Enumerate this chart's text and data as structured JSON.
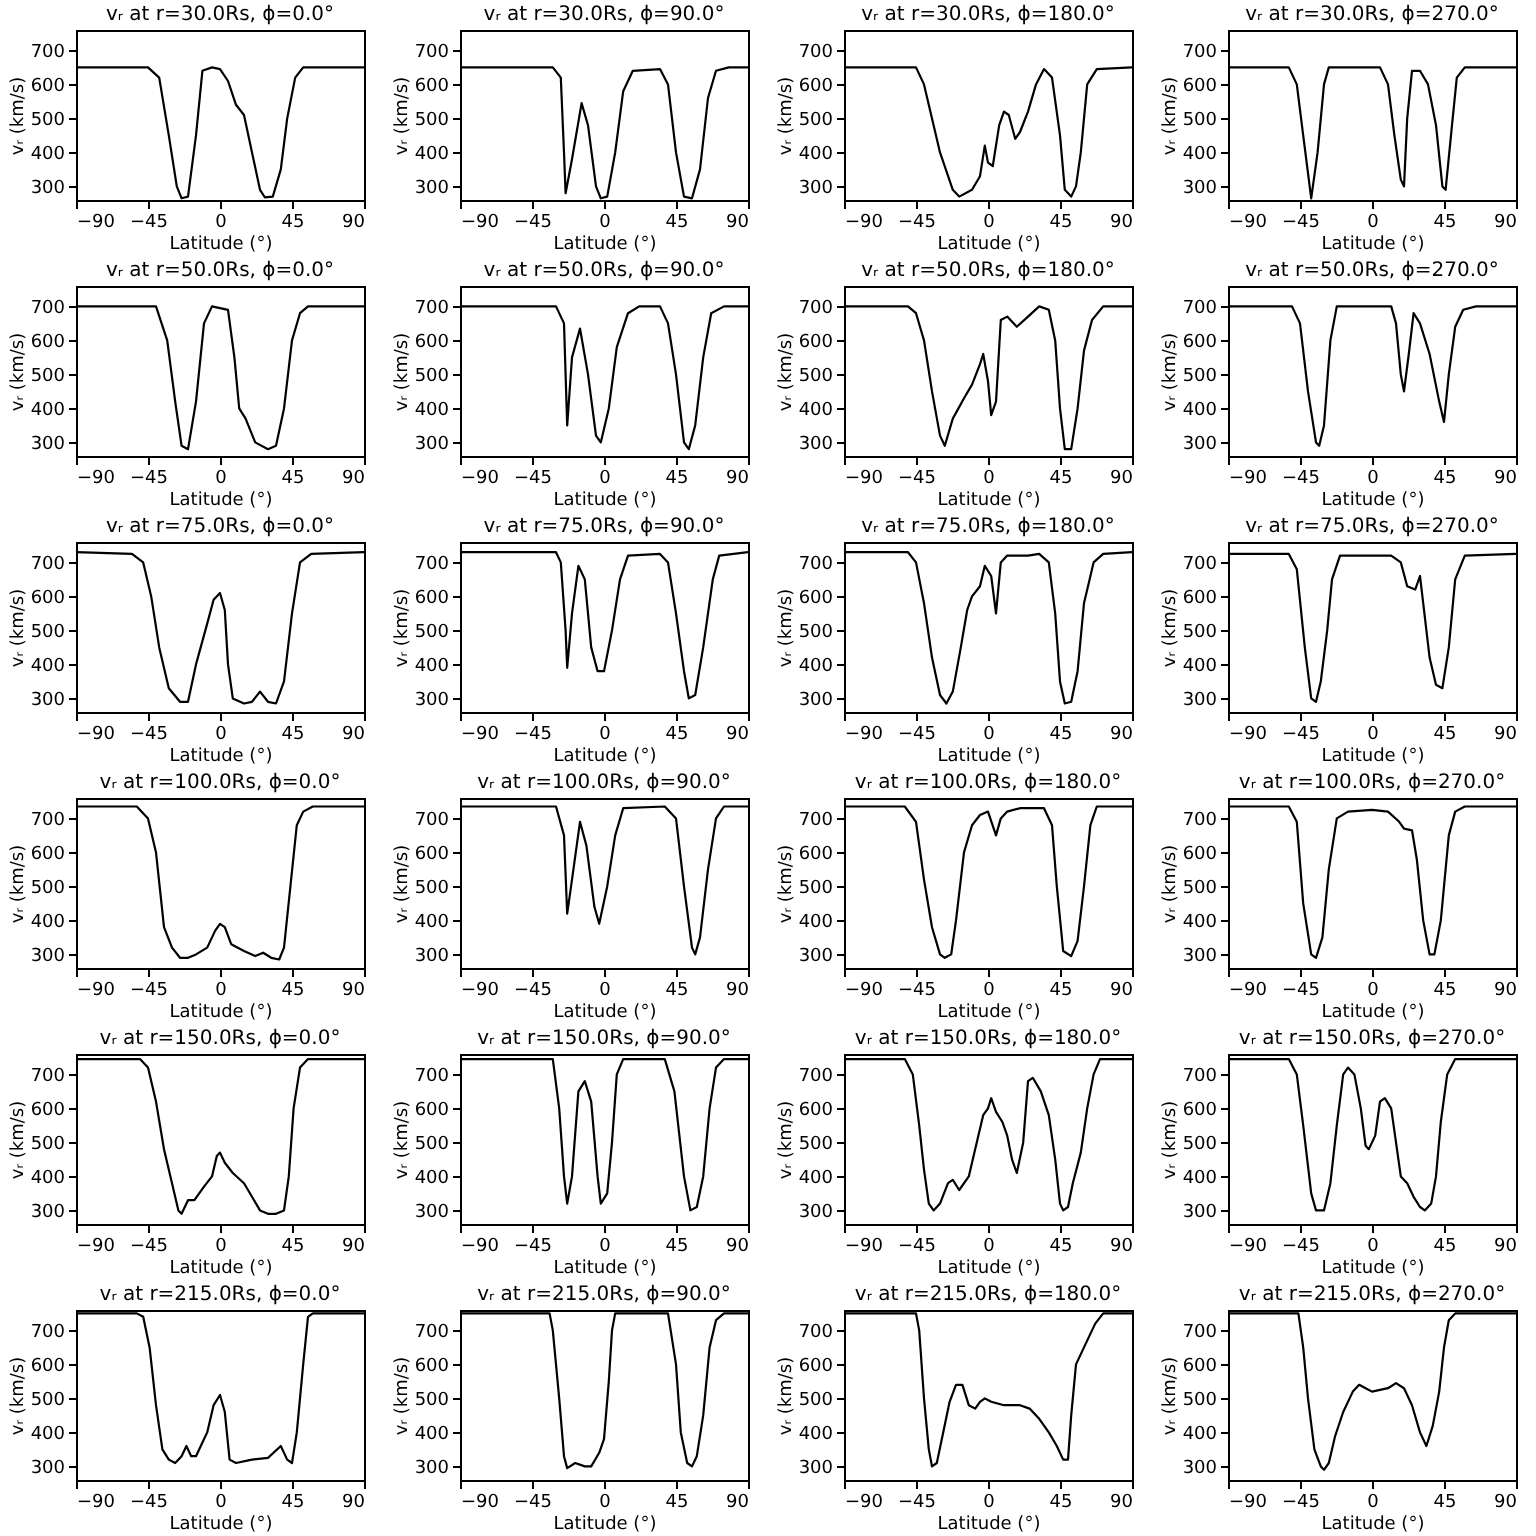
{
  "chart_data": [
    {
      "type": "line",
      "title": "vᵣ at r=30.0Rs, ϕ=0.0°",
      "xlabel": "Latitude (°)",
      "ylabel": "vᵣ (km/s)",
      "xlim": [
        -90,
        90
      ],
      "xticks": [
        -90,
        -45,
        0,
        45,
        90
      ],
      "ylim": [
        260,
        760
      ],
      "yticks": [
        300,
        400,
        500,
        600,
        700
      ],
      "x": [
        -90,
        -45,
        -38,
        -32,
        -27,
        -24,
        -20,
        -15,
        -11,
        -5,
        0,
        5,
        10,
        15,
        20,
        25,
        28,
        33,
        38,
        42,
        47,
        52,
        90
      ],
      "series": [
        {
          "color": "#000000",
          "values": [
            650,
            650,
            620,
            450,
            300,
            265,
            270,
            450,
            640,
            650,
            645,
            610,
            540,
            510,
            400,
            290,
            268,
            270,
            350,
            500,
            620,
            650,
            650
          ]
        }
      ]
    },
    {
      "type": "line",
      "title": "vᵣ at r=30.0Rs, ϕ=90.0°",
      "xlabel": "Latitude (°)",
      "ylabel": "vᵣ (km/s)",
      "xlim": [
        -90,
        90
      ],
      "xticks": [
        -90,
        -45,
        0,
        45,
        90
      ],
      "ylim": [
        260,
        760
      ],
      "yticks": [
        300,
        400,
        500,
        600,
        700
      ],
      "x": [
        -90,
        -32,
        -27,
        -25,
        -24,
        -20,
        -14,
        -10,
        -5,
        -2,
        2,
        7,
        12,
        18,
        35,
        40,
        45,
        50,
        55,
        60,
        65,
        70,
        78,
        90
      ],
      "series": [
        {
          "color": "#000000",
          "values": [
            650,
            650,
            620,
            400,
            280,
            380,
            545,
            480,
            300,
            265,
            270,
            400,
            580,
            640,
            645,
            600,
            400,
            270,
            265,
            350,
            560,
            640,
            650,
            650
          ]
        }
      ]
    },
    {
      "type": "line",
      "title": "vᵣ at r=30.0Rs, ϕ=180.0°",
      "xlabel": "Latitude (°)",
      "ylabel": "vᵣ (km/s)",
      "xlim": [
        -90,
        90
      ],
      "xticks": [
        -90,
        -45,
        0,
        45,
        90
      ],
      "ylim": [
        260,
        760
      ],
      "yticks": [
        300,
        400,
        500,
        600,
        700
      ],
      "x": [
        -90,
        -45,
        -40,
        -30,
        -22,
        -18,
        -10,
        -5,
        -2,
        0,
        3,
        7,
        10,
        13,
        17,
        20,
        25,
        30,
        35,
        40,
        45,
        48,
        52,
        55,
        58,
        62,
        68,
        90
      ],
      "series": [
        {
          "color": "#000000",
          "values": [
            650,
            650,
            600,
            400,
            290,
            270,
            290,
            330,
            420,
            370,
            360,
            480,
            520,
            510,
            440,
            460,
            520,
            600,
            645,
            620,
            450,
            290,
            270,
            300,
            400,
            600,
            645,
            650
          ]
        }
      ]
    },
    {
      "type": "line",
      "title": "vᵣ at r=30.0Rs, ϕ=270.0°",
      "xlabel": "Latitude (°)",
      "ylabel": "vᵣ (km/s)",
      "xlim": [
        -90,
        90
      ],
      "xticks": [
        -90,
        -45,
        0,
        45,
        90
      ],
      "ylim": [
        260,
        760
      ],
      "yticks": [
        300,
        400,
        500,
        600,
        700
      ],
      "x": [
        -90,
        -52,
        -47,
        -43,
        -38,
        -34,
        -30,
        -27,
        5,
        10,
        14,
        18,
        20,
        22,
        25,
        30,
        35,
        40,
        44,
        46,
        50,
        53,
        58,
        90
      ],
      "series": [
        {
          "color": "#000000",
          "values": [
            650,
            650,
            600,
            450,
            265,
            400,
            600,
            650,
            650,
            600,
            450,
            320,
            300,
            500,
            640,
            640,
            600,
            480,
            300,
            290,
            480,
            620,
            650,
            650
          ]
        }
      ]
    },
    {
      "type": "line",
      "title": "vᵣ at r=50.0Rs, ϕ=0.0°",
      "xlabel": "Latitude (°)",
      "ylabel": "vᵣ (km/s)",
      "xlim": [
        -90,
        90
      ],
      "xticks": [
        -90,
        -45,
        0,
        45,
        90
      ],
      "ylim": [
        260,
        760
      ],
      "yticks": [
        300,
        400,
        500,
        600,
        700
      ],
      "x": [
        -90,
        -40,
        -33,
        -28,
        -24,
        -20,
        -15,
        -10,
        -5,
        5,
        9,
        12,
        16,
        22,
        30,
        35,
        40,
        45,
        50,
        55,
        90
      ],
      "series": [
        {
          "color": "#000000",
          "values": [
            700,
            700,
            600,
            420,
            290,
            280,
            420,
            650,
            700,
            690,
            550,
            400,
            370,
            300,
            280,
            290,
            400,
            600,
            680,
            700,
            700
          ]
        }
      ]
    },
    {
      "type": "line",
      "title": "vᵣ at r=50.0Rs, ϕ=90.0°",
      "xlabel": "Latitude (°)",
      "ylabel": "vᵣ (km/s)",
      "xlim": [
        -90,
        90
      ],
      "xticks": [
        -90,
        -45,
        0,
        45,
        90
      ],
      "ylim": [
        260,
        760
      ],
      "yticks": [
        300,
        400,
        500,
        600,
        700
      ],
      "x": [
        -90,
        -30,
        -25,
        -23,
        -20,
        -15,
        -10,
        -5,
        -2,
        3,
        8,
        15,
        22,
        35,
        40,
        45,
        50,
        53,
        57,
        62,
        67,
        75,
        90
      ],
      "series": [
        {
          "color": "#000000",
          "values": [
            700,
            700,
            650,
            350,
            550,
            635,
            500,
            320,
            300,
            400,
            580,
            680,
            700,
            700,
            650,
            500,
            300,
            280,
            350,
            550,
            680,
            700,
            700
          ]
        }
      ]
    },
    {
      "type": "line",
      "title": "vᵣ at r=50.0Rs, ϕ=180.0°",
      "xlabel": "Latitude (°)",
      "ylabel": "vᵣ (km/s)",
      "xlim": [
        -90,
        90
      ],
      "xticks": [
        -90,
        -45,
        0,
        45,
        90
      ],
      "ylim": [
        260,
        760
      ],
      "yticks": [
        300,
        400,
        500,
        600,
        700
      ],
      "x": [
        -90,
        -50,
        -45,
        -40,
        -35,
        -30,
        -27,
        -22,
        -15,
        -10,
        -5,
        -3,
        0,
        2,
        5,
        8,
        12,
        18,
        25,
        32,
        38,
        42,
        45,
        48,
        52,
        56,
        60,
        65,
        72,
        90
      ],
      "series": [
        {
          "color": "#000000",
          "values": [
            700,
            700,
            680,
            600,
            450,
            320,
            290,
            370,
            430,
            470,
            530,
            560,
            480,
            380,
            420,
            660,
            670,
            640,
            670,
            700,
            690,
            600,
            400,
            280,
            280,
            400,
            570,
            660,
            700,
            700
          ]
        }
      ]
    },
    {
      "type": "line",
      "title": "vᵣ at r=50.0Rs, ϕ=270.0°",
      "xlabel": "Latitude (°)",
      "ylabel": "vᵣ (km/s)",
      "xlim": [
        -90,
        90
      ],
      "xticks": [
        -90,
        -45,
        0,
        45,
        90
      ],
      "ylim": [
        260,
        760
      ],
      "yticks": [
        300,
        400,
        500,
        600,
        700
      ],
      "x": [
        -90,
        -50,
        -45,
        -40,
        -35,
        -33,
        -30,
        -26,
        -22,
        12,
        15,
        18,
        20,
        23,
        26,
        30,
        36,
        42,
        45,
        48,
        52,
        57,
        65,
        90
      ],
      "series": [
        {
          "color": "#000000",
          "values": [
            700,
            700,
            650,
            450,
            300,
            290,
            350,
            600,
            700,
            700,
            650,
            500,
            450,
            560,
            680,
            650,
            560,
            420,
            360,
            500,
            640,
            690,
            700,
            700
          ]
        }
      ]
    },
    {
      "type": "line",
      "title": "vᵣ at r=75.0Rs, ϕ=0.0°",
      "xlabel": "Latitude (°)",
      "ylabel": "vᵣ (km/s)",
      "xlim": [
        -90,
        90
      ],
      "xticks": [
        -90,
        -45,
        0,
        45,
        90
      ],
      "ylim": [
        260,
        760
      ],
      "yticks": [
        300,
        400,
        500,
        600,
        700
      ],
      "x": [
        -90,
        -55,
        -48,
        -43,
        -38,
        -32,
        -25,
        -20,
        -15,
        -8,
        -4,
        0,
        3,
        5,
        8,
        15,
        20,
        25,
        30,
        35,
        40,
        45,
        50,
        57,
        90
      ],
      "series": [
        {
          "color": "#000000",
          "values": [
            730,
            725,
            700,
            600,
            450,
            330,
            290,
            290,
            400,
            520,
            590,
            610,
            560,
            400,
            300,
            285,
            290,
            320,
            290,
            285,
            350,
            550,
            700,
            725,
            730
          ]
        }
      ]
    },
    {
      "type": "line",
      "title": "vᵣ at r=75.0Rs, ϕ=90.0°",
      "xlabel": "Latitude (°)",
      "ylabel": "vᵣ (km/s)",
      "xlim": [
        -90,
        90
      ],
      "xticks": [
        -90,
        -45,
        0,
        45,
        90
      ],
      "ylim": [
        260,
        760
      ],
      "yticks": [
        300,
        400,
        500,
        600,
        700
      ],
      "x": [
        -90,
        -30,
        -27,
        -24,
        -23,
        -20,
        -16,
        -12,
        -8,
        -4,
        0,
        5,
        10,
        15,
        35,
        40,
        45,
        50,
        53,
        57,
        62,
        68,
        72,
        90
      ],
      "series": [
        {
          "color": "#000000",
          "values": [
            730,
            730,
            700,
            500,
            390,
            550,
            690,
            650,
            450,
            380,
            380,
            500,
            650,
            720,
            725,
            700,
            550,
            380,
            300,
            310,
            450,
            650,
            720,
            730
          ]
        }
      ]
    },
    {
      "type": "line",
      "title": "vᵣ at r=75.0Rs, ϕ=180.0°",
      "xlabel": "Latitude (°)",
      "ylabel": "vᵣ (km/s)",
      "xlim": [
        -90,
        90
      ],
      "xticks": [
        -90,
        -45,
        0,
        45,
        90
      ],
      "ylim": [
        260,
        760
      ],
      "yticks": [
        300,
        400,
        500,
        600,
        700
      ],
      "x": [
        -90,
        -50,
        -45,
        -40,
        -35,
        -30,
        -26,
        -22,
        -17,
        -13,
        -10,
        -5,
        -2,
        2,
        5,
        8,
        12,
        25,
        32,
        38,
        42,
        45,
        48,
        52,
        56,
        60,
        66,
        72,
        90
      ],
      "series": [
        {
          "color": "#000000",
          "values": [
            730,
            730,
            700,
            580,
            420,
            310,
            285,
            320,
            450,
            560,
            600,
            630,
            690,
            660,
            550,
            700,
            720,
            720,
            725,
            700,
            550,
            350,
            285,
            290,
            380,
            580,
            700,
            725,
            730
          ]
        }
      ]
    },
    {
      "type": "line",
      "title": "vᵣ at r=75.0Rs, ϕ=270.0°",
      "xlabel": "Latitude (°)",
      "ylabel": "vᵣ (km/s)",
      "xlim": [
        -90,
        90
      ],
      "xticks": [
        -90,
        -45,
        0,
        45,
        90
      ],
      "ylim": [
        260,
        760
      ],
      "yticks": [
        300,
        400,
        500,
        600,
        700
      ],
      "x": [
        -90,
        -52,
        -47,
        -42,
        -38,
        -35,
        -32,
        -28,
        -25,
        -20,
        12,
        18,
        22,
        27,
        30,
        32,
        36,
        40,
        44,
        48,
        52,
        58,
        90
      ],
      "series": [
        {
          "color": "#000000",
          "values": [
            725,
            725,
            680,
            450,
            300,
            290,
            350,
            500,
            650,
            720,
            720,
            700,
            630,
            620,
            660,
            580,
            420,
            340,
            330,
            450,
            650,
            720,
            725
          ]
        }
      ]
    },
    {
      "type": "line",
      "title": "vᵣ at r=100.0Rs, ϕ=0.0°",
      "xlabel": "Latitude (°)",
      "ylabel": "vᵣ (km/s)",
      "xlim": [
        -90,
        90
      ],
      "xticks": [
        -90,
        -45,
        0,
        45,
        90
      ],
      "ylim": [
        260,
        760
      ],
      "yticks": [
        300,
        400,
        500,
        600,
        700
      ],
      "x": [
        -90,
        -52,
        -45,
        -40,
        -35,
        -30,
        -25,
        -20,
        -15,
        -8,
        -3,
        0,
        3,
        7,
        15,
        22,
        27,
        32,
        37,
        40,
        44,
        48,
        52,
        58,
        90
      ],
      "series": [
        {
          "color": "#000000",
          "values": [
            735,
            735,
            700,
            600,
            380,
            320,
            290,
            290,
            300,
            320,
            370,
            390,
            380,
            330,
            310,
            295,
            305,
            290,
            285,
            320,
            500,
            680,
            720,
            735,
            735
          ]
        }
      ]
    },
    {
      "type": "line",
      "title": "vᵣ at r=100.0Rs, ϕ=90.0°",
      "xlabel": "Latitude (°)",
      "ylabel": "vᵣ (km/s)",
      "xlim": [
        -90,
        90
      ],
      "xticks": [
        -90,
        -45,
        0,
        45,
        90
      ],
      "ylim": [
        260,
        760
      ],
      "yticks": [
        300,
        400,
        500,
        600,
        700
      ],
      "x": [
        -90,
        -30,
        -25,
        -23,
        -20,
        -15,
        -11,
        -6,
        -3,
        2,
        7,
        12,
        38,
        45,
        50,
        55,
        57,
        60,
        65,
        70,
        75,
        90
      ],
      "series": [
        {
          "color": "#000000",
          "values": [
            735,
            735,
            650,
            420,
            520,
            690,
            620,
            440,
            390,
            500,
            650,
            730,
            735,
            700,
            500,
            320,
            300,
            350,
            550,
            700,
            735,
            735
          ]
        }
      ]
    },
    {
      "type": "line",
      "title": "vᵣ at r=100.0Rs, ϕ=180.0°",
      "xlabel": "Latitude (°)",
      "ylabel": "vᵣ (km/s)",
      "xlim": [
        -90,
        90
      ],
      "xticks": [
        -90,
        -45,
        0,
        45,
        90
      ],
      "ylim": [
        260,
        760
      ],
      "yticks": [
        300,
        400,
        500,
        600,
        700
      ],
      "x": [
        -90,
        -52,
        -45,
        -40,
        -35,
        -30,
        -27,
        -23,
        -20,
        -15,
        -10,
        -5,
        0,
        5,
        8,
        12,
        20,
        35,
        40,
        43,
        47,
        52,
        56,
        60,
        64,
        68,
        90
      ],
      "series": [
        {
          "color": "#000000",
          "values": [
            735,
            735,
            690,
            520,
            380,
            300,
            290,
            300,
            400,
            600,
            680,
            710,
            720,
            650,
            700,
            720,
            730,
            730,
            680,
            500,
            310,
            295,
            340,
            500,
            680,
            735,
            735
          ]
        }
      ]
    },
    {
      "type": "line",
      "title": "vᵣ at r=100.0Rs, ϕ=270.0°",
      "xlabel": "Latitude (°)",
      "ylabel": "vᵣ (km/s)",
      "xlim": [
        -90,
        90
      ],
      "xticks": [
        -90,
        -45,
        0,
        45,
        90
      ],
      "ylim": [
        260,
        760
      ],
      "yticks": [
        300,
        400,
        500,
        600,
        700
      ],
      "x": [
        -90,
        -52,
        -47,
        -43,
        -38,
        -35,
        -31,
        -27,
        -22,
        -15,
        0,
        10,
        17,
        20,
        25,
        28,
        32,
        36,
        39,
        43,
        48,
        52,
        58,
        90
      ],
      "series": [
        {
          "color": "#000000",
          "values": [
            735,
            735,
            690,
            450,
            300,
            290,
            350,
            550,
            700,
            720,
            725,
            720,
            690,
            670,
            665,
            580,
            400,
            300,
            300,
            400,
            650,
            720,
            735,
            735
          ]
        }
      ]
    },
    {
      "type": "line",
      "title": "vᵣ at r=150.0Rs, ϕ=0.0°",
      "xlabel": "Latitude (°)",
      "ylabel": "vᵣ (km/s)",
      "xlim": [
        -90,
        90
      ],
      "xticks": [
        -90,
        -45,
        0,
        45,
        90
      ],
      "ylim": [
        260,
        760
      ],
      "yticks": [
        300,
        400,
        500,
        600,
        700
      ],
      "x": [
        -90,
        -50,
        -45,
        -40,
        -35,
        -30,
        -26,
        -24,
        -20,
        -16,
        -10,
        -5,
        -2,
        0,
        3,
        8,
        15,
        20,
        25,
        30,
        35,
        40,
        43,
        46,
        50,
        55,
        90
      ],
      "series": [
        {
          "color": "#000000",
          "values": [
            745,
            745,
            720,
            620,
            480,
            380,
            300,
            290,
            330,
            330,
            370,
            400,
            460,
            470,
            440,
            410,
            380,
            340,
            300,
            290,
            290,
            300,
            400,
            600,
            720,
            745,
            745
          ]
        }
      ]
    },
    {
      "type": "line",
      "title": "vᵣ at r=150.0Rs, ϕ=90.0°",
      "xlabel": "Latitude (°)",
      "ylabel": "vᵣ (km/s)",
      "xlim": [
        -90,
        90
      ],
      "xticks": [
        -90,
        -45,
        0,
        45,
        90
      ],
      "ylim": [
        260,
        760
      ],
      "yticks": [
        300,
        400,
        500,
        600,
        700
      ],
      "x": [
        -90,
        -32,
        -28,
        -25,
        -23,
        -20,
        -16,
        -12,
        -8,
        -4,
        -2,
        2,
        5,
        8,
        12,
        38,
        44,
        50,
        54,
        58,
        62,
        66,
        70,
        75,
        90
      ],
      "series": [
        {
          "color": "#000000",
          "values": [
            745,
            745,
            600,
            400,
            320,
            400,
            650,
            680,
            620,
            400,
            320,
            350,
            500,
            700,
            745,
            745,
            650,
            400,
            300,
            310,
            400,
            600,
            720,
            745,
            745
          ]
        }
      ]
    },
    {
      "type": "line",
      "title": "vᵣ at r=150.0Rs, ϕ=180.0°",
      "xlabel": "Latitude (°)",
      "ylabel": "vᵣ (km/s)",
      "xlim": [
        -90,
        90
      ],
      "xticks": [
        -90,
        -45,
        0,
        45,
        90
      ],
      "ylim": [
        260,
        760
      ],
      "yticks": [
        300,
        400,
        500,
        600,
        700
      ],
      "x": [
        -90,
        -52,
        -47,
        -43,
        -40,
        -37,
        -34,
        -30,
        -25,
        -22,
        -18,
        -12,
        -6,
        -3,
        0,
        2,
        5,
        9,
        12,
        15,
        18,
        22,
        25,
        28,
        33,
        38,
        42,
        45,
        47,
        50,
        53,
        58,
        62,
        66,
        70,
        90
      ],
      "series": [
        {
          "color": "#000000",
          "values": [
            745,
            745,
            700,
            550,
            420,
            320,
            300,
            320,
            380,
            390,
            360,
            400,
            520,
            580,
            600,
            630,
            590,
            560,
            520,
            450,
            410,
            500,
            680,
            690,
            650,
            580,
            450,
            320,
            300,
            310,
            380,
            470,
            600,
            700,
            745,
            745
          ]
        }
      ]
    },
    {
      "type": "line",
      "title": "vᵣ at r=150.0Rs, ϕ=270.0°",
      "xlabel": "Latitude (°)",
      "ylabel": "vᵣ (km/s)",
      "xlim": [
        -90,
        90
      ],
      "xticks": [
        -90,
        -45,
        0,
        45,
        90
      ],
      "ylim": [
        260,
        760
      ],
      "yticks": [
        300,
        400,
        500,
        600,
        700
      ],
      "x": [
        -90,
        -52,
        -47,
        -43,
        -38,
        -35,
        -30,
        -26,
        -22,
        -18,
        -15,
        -11,
        -7,
        -4,
        -2,
        2,
        5,
        8,
        12,
        15,
        18,
        22,
        26,
        30,
        33,
        37,
        40,
        43,
        47,
        52,
        90
      ],
      "series": [
        {
          "color": "#000000",
          "values": [
            745,
            745,
            700,
            550,
            350,
            300,
            300,
            380,
            550,
            700,
            720,
            700,
            600,
            490,
            480,
            520,
            620,
            630,
            600,
            500,
            400,
            380,
            340,
            310,
            300,
            320,
            400,
            560,
            700,
            745,
            745
          ]
        }
      ]
    },
    {
      "type": "line",
      "title": "vᵣ at r=215.0Rs, ϕ=0.0°",
      "xlabel": "Latitude (°)",
      "ylabel": "vᵣ (km/s)",
      "xlim": [
        -90,
        90
      ],
      "xticks": [
        -90,
        -45,
        0,
        45,
        90
      ],
      "ylim": [
        260,
        760
      ],
      "yticks": [
        300,
        400,
        500,
        600,
        700
      ],
      "x": [
        -90,
        -52,
        -48,
        -44,
        -40,
        -36,
        -32,
        -28,
        -24,
        -21,
        -18,
        -15,
        -12,
        -8,
        -4,
        0,
        3,
        6,
        10,
        20,
        30,
        38,
        42,
        45,
        48,
        52,
        55,
        58,
        90
      ],
      "series": [
        {
          "color": "#000000",
          "values": [
            750,
            750,
            740,
            650,
            480,
            350,
            320,
            310,
            330,
            360,
            330,
            330,
            360,
            400,
            480,
            510,
            460,
            320,
            310,
            320,
            325,
            360,
            320,
            310,
            400,
            600,
            740,
            750,
            750
          ]
        }
      ]
    },
    {
      "type": "line",
      "title": "vᵣ at r=215.0Rs, ϕ=90.0°",
      "xlabel": "Latitude (°)",
      "ylabel": "vᵣ (km/s)",
      "xlim": [
        -90,
        90
      ],
      "xticks": [
        -90,
        -45,
        0,
        45,
        90
      ],
      "ylim": [
        260,
        760
      ],
      "yticks": [
        300,
        400,
        500,
        600,
        700
      ],
      "x": [
        -90,
        -34,
        -32,
        -28,
        -25,
        -23,
        -18,
        -12,
        -8,
        -3,
        0,
        3,
        5,
        7,
        40,
        45,
        48,
        52,
        55,
        58,
        62,
        66,
        70,
        75,
        90
      ],
      "series": [
        {
          "color": "#000000",
          "values": [
            750,
            750,
            700,
            500,
            330,
            295,
            310,
            300,
            300,
            340,
            380,
            550,
            700,
            750,
            750,
            600,
            400,
            310,
            300,
            330,
            450,
            650,
            730,
            750,
            750
          ]
        }
      ]
    },
    {
      "type": "line",
      "title": "vᵣ at r=215.0Rs, ϕ=180.0°",
      "xlabel": "Latitude (°)",
      "ylabel": "vᵣ (km/s)",
      "xlim": [
        -90,
        90
      ],
      "xticks": [
        -90,
        -45,
        0,
        45,
        90
      ],
      "ylim": [
        260,
        760
      ],
      "yticks": [
        300,
        400,
        500,
        600,
        700
      ],
      "x": [
        -90,
        -45,
        -43,
        -40,
        -37,
        -35,
        -32,
        -28,
        -24,
        -20,
        -16,
        -12,
        -8,
        -5,
        -2,
        2,
        10,
        20,
        26,
        32,
        38,
        43,
        47,
        50,
        52,
        55,
        60,
        67,
        72,
        90
      ],
      "series": [
        {
          "color": "#000000",
          "values": [
            750,
            750,
            700,
            500,
            350,
            300,
            310,
            400,
            490,
            540,
            540,
            480,
            470,
            490,
            500,
            490,
            480,
            480,
            470,
            440,
            400,
            360,
            320,
            320,
            450,
            600,
            650,
            720,
            750,
            750
          ]
        }
      ]
    },
    {
      "type": "line",
      "title": "vᵣ at r=215.0Rs, ϕ=270.0°",
      "xlabel": "Latitude (°)",
      "ylabel": "vᵣ (km/s)",
      "xlim": [
        -90,
        90
      ],
      "xticks": [
        -90,
        -45,
        0,
        45,
        90
      ],
      "ylim": [
        260,
        760
      ],
      "yticks": [
        300,
        400,
        500,
        600,
        700
      ],
      "x": [
        -90,
        -46,
        -43,
        -40,
        -36,
        -32,
        -30,
        -27,
        -23,
        -18,
        -12,
        -8,
        -4,
        0,
        5,
        10,
        15,
        20,
        25,
        30,
        34,
        38,
        42,
        45,
        48,
        52,
        90
      ],
      "series": [
        {
          "color": "#000000",
          "values": [
            750,
            750,
            650,
            500,
            350,
            300,
            290,
            310,
            390,
            460,
            520,
            540,
            530,
            520,
            525,
            530,
            545,
            530,
            480,
            400,
            360,
            420,
            520,
            650,
            730,
            750,
            750
          ]
        }
      ]
    }
  ]
}
